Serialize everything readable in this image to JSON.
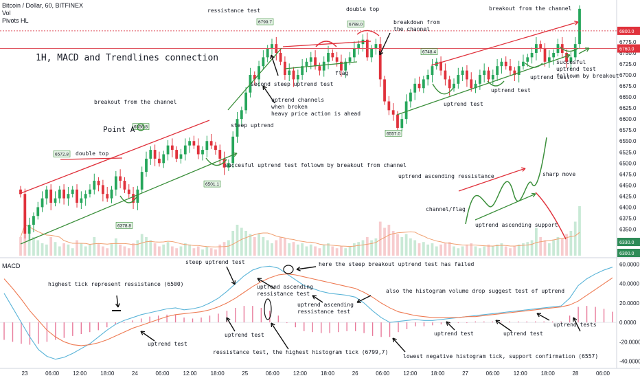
{
  "legend": {
    "symbol": "Bitcoin / Dollar, 60, BITFINEX",
    "volume": "Vol",
    "pivots": "Pivots HL",
    "macd": "MACD"
  },
  "title": "1H, MACD and Trendlines connection",
  "point_a": "Point A",
  "colors": {
    "up": "#26a65b",
    "down": "#e0323c",
    "uptrend_line": "#3b8f3b",
    "channel_line": "#e0323c",
    "macd_line": "#5ab4d8",
    "signal_line": "#ee7a52",
    "resistance_level": "#e05560",
    "support_level": "#2e8b57"
  },
  "price_levels": {
    "upper_dotted": {
      "value": 6800,
      "label": "6800.0"
    },
    "upper_solid": {
      "value": 6760,
      "label": "6760.0"
    },
    "volume_label": "6330.0",
    "bottom_label": "6300.0"
  },
  "pivot_tags": [
    {
      "label": "6572.8",
      "x": 90,
      "price": 6520
    },
    {
      "label": "6556.8",
      "x": 205,
      "price": 6582
    },
    {
      "label": "6799.7",
      "x": 386,
      "price": 6820
    },
    {
      "label": "6798.0",
      "x": 518,
      "price": 6815
    },
    {
      "label": "6748.4",
      "x": 625,
      "price": 6752
    },
    {
      "label": "6501.1",
      "x": 309,
      "price": 6452
    },
    {
      "label": "6378.8",
      "x": 181,
      "price": 6358
    },
    {
      "label": "6557.0",
      "x": 573,
      "price": 6567
    }
  ],
  "price_annotations": [
    {
      "text": "ressistance test",
      "x": 302,
      "y": 18
    },
    {
      "text": "double top",
      "x": 504,
      "y": 16
    },
    {
      "text": "breakout from the channel",
      "x": 712,
      "y": 15
    },
    {
      "text": "breakdown from",
      "x": 573,
      "y": 35
    },
    {
      "text": "the channel",
      "x": 573,
      "y": 45
    },
    {
      "text": "flag",
      "x": 488,
      "y": 109
    },
    {
      "text": "second steep uptrend test",
      "x": 365,
      "y": 125
    },
    {
      "text": "breakout from the channel",
      "x": 137,
      "y": 151
    },
    {
      "text": "uptrend channels",
      "x": 395,
      "y": 148
    },
    {
      "text": "when broken",
      "x": 395,
      "y": 158
    },
    {
      "text": "heavy price action is ahead",
      "x": 395,
      "y": 168
    },
    {
      "text": "steep uptrend",
      "x": 336,
      "y": 185
    },
    {
      "text": "double top",
      "x": 110,
      "y": 226
    },
    {
      "text": "succesful uptrend test followm by breakout from channel",
      "x": 327,
      "y": 243
    },
    {
      "text": "uptrend test",
      "x": 646,
      "y": 154
    },
    {
      "text": "uptrend test",
      "x": 715,
      "y": 134
    },
    {
      "text": "uptrend test",
      "x": 772,
      "y": 115
    },
    {
      "text": "succesful",
      "x": 810,
      "y": 93
    },
    {
      "text": "uptrend test",
      "x": 810,
      "y": 103
    },
    {
      "text": "followm by breakout",
      "x": 810,
      "y": 113
    },
    {
      "text": "uptrend ascending ressistance",
      "x": 580,
      "y": 259
    },
    {
      "text": "sharp move",
      "x": 790,
      "y": 256
    },
    {
      "text": "channel/flag",
      "x": 620,
      "y": 307
    },
    {
      "text": "uptrend ascending support",
      "x": 692,
      "y": 330
    }
  ],
  "macd_annotations": [
    {
      "text": "steep uptrend test",
      "x": 270,
      "y": 384
    },
    {
      "text": "here the steep breakout uptrend test has failed",
      "x": 464,
      "y": 387
    },
    {
      "text": "highest tick represent ressistance (6500)",
      "x": 70,
      "y": 416
    },
    {
      "text": "uptrend ascending",
      "x": 374,
      "y": 420
    },
    {
      "text": "ressistance test",
      "x": 374,
      "y": 430
    },
    {
      "text": "also the histogram volume drop suggest test of uptrend",
      "x": 562,
      "y": 426
    },
    {
      "text": "uptrend ascending",
      "x": 433,
      "y": 446
    },
    {
      "text": "ressistance test",
      "x": 433,
      "y": 456
    },
    {
      "text": "uptrend test",
      "x": 327,
      "y": 490
    },
    {
      "text": "uptrend test",
      "x": 215,
      "y": 503
    },
    {
      "text": "uptrend test",
      "x": 632,
      "y": 488
    },
    {
      "text": "uptrend test",
      "x": 733,
      "y": 488
    },
    {
      "text": "uptrend tests",
      "x": 806,
      "y": 475
    },
    {
      "text": "ressistance test, the highest histogram tick (6799,7)",
      "x": 310,
      "y": 515
    },
    {
      "text": "lowest negative histogram tick, support confirmation (6557)",
      "x": 587,
      "y": 521
    }
  ],
  "chart_data": [
    {
      "type": "candlestick",
      "title": "Bitcoin / Dollar, 60, BITFINEX",
      "interval": "60",
      "ylim": [
        6290,
        6870
      ],
      "y_ticks": [
        6300,
        6325,
        6350,
        6375,
        6400,
        6425,
        6450,
        6475,
        6500,
        6525,
        6550,
        6575,
        6600,
        6625,
        6650,
        6675,
        6700,
        6725,
        6750,
        6775
      ],
      "x_tick_labels": [
        "23",
        "06:00",
        "12:00",
        "18:00",
        "24",
        "06:00",
        "12:00",
        "18:00",
        "25",
        "06:00",
        "12:00",
        "18:00",
        "26",
        "06:00",
        "12:00",
        "18:00",
        "27",
        "06:00",
        "12:00",
        "18:00",
        "28",
        "06:00"
      ],
      "closes": [
        6430,
        6340,
        6360,
        6380,
        6400,
        6420,
        6440,
        6410,
        6420,
        6440,
        6420,
        6430,
        6440,
        6410,
        6420,
        6430,
        6440,
        6460,
        6450,
        6430,
        6420,
        6440,
        6470,
        6460,
        6440,
        6430,
        6410,
        6440,
        6480,
        6510,
        6530,
        6510,
        6500,
        6520,
        6540,
        6530,
        6510,
        6520,
        6540,
        6550,
        6540,
        6520,
        6530,
        6550,
        6540,
        6530,
        6510,
        6490,
        6500,
        6560,
        6600,
        6620,
        6660,
        6700,
        6690,
        6720,
        6740,
        6760,
        6770,
        6750,
        6730,
        6700,
        6710,
        6690,
        6700,
        6720,
        6730,
        6740,
        6720,
        6710,
        6730,
        6750,
        6740,
        6730,
        6710,
        6730,
        6740,
        6760,
        6770,
        6780,
        6740,
        6760,
        6770,
        6690,
        6640,
        6620,
        6610,
        6580,
        6600,
        6640,
        6660,
        6680,
        6670,
        6690,
        6700,
        6720,
        6730,
        6710,
        6690,
        6670,
        6680,
        6700,
        6710,
        6690,
        6670,
        6680,
        6700,
        6710,
        6690,
        6700,
        6720,
        6730,
        6720,
        6710,
        6700,
        6720,
        6730,
        6740,
        6750,
        6770,
        6760,
        6730,
        6740,
        6750,
        6770,
        6750,
        6730,
        6740,
        6770,
        6850
      ],
      "volume": [
        0.3,
        0.7,
        0.4,
        0.3,
        0.25,
        0.2,
        0.18,
        0.3,
        0.22,
        0.15,
        0.2,
        0.18,
        0.12,
        0.25,
        0.2,
        0.15,
        0.18,
        0.3,
        0.2,
        0.15,
        0.12,
        0.2,
        0.28,
        0.18,
        0.15,
        0.12,
        0.2,
        0.25,
        0.35,
        0.3,
        0.25,
        0.2,
        0.15,
        0.18,
        0.22,
        0.15,
        0.12,
        0.15,
        0.2,
        0.18,
        0.12,
        0.15,
        0.1,
        0.15,
        0.12,
        0.1,
        0.18,
        0.22,
        0.25,
        0.4,
        0.5,
        0.45,
        0.4,
        0.35,
        0.3,
        0.35,
        0.3,
        0.25,
        0.2,
        0.25,
        0.3,
        0.28,
        0.2,
        0.22,
        0.18,
        0.2,
        0.15,
        0.18,
        0.15,
        0.12,
        0.18,
        0.2,
        0.15,
        0.12,
        0.15,
        0.12,
        0.15,
        0.2,
        0.22,
        0.25,
        0.3,
        0.25,
        0.28,
        0.55,
        0.45,
        0.5,
        0.4,
        0.35,
        0.3,
        0.35,
        0.28,
        0.25,
        0.2,
        0.22,
        0.18,
        0.2,
        0.15,
        0.18,
        0.2,
        0.22,
        0.15,
        0.12,
        0.15,
        0.18,
        0.2,
        0.15,
        0.12,
        0.15,
        0.18,
        0.15,
        0.18,
        0.2,
        0.15,
        0.12,
        0.15,
        0.18,
        0.2,
        0.22,
        0.25,
        0.45,
        0.3,
        0.25,
        0.2,
        0.25,
        0.3,
        0.28,
        0.35,
        0.4,
        0.55,
        0.8
      ]
    },
    {
      "type": "line",
      "title": "MACD",
      "ylim": [
        -46,
        66
      ],
      "y_ticks": [
        60,
        40,
        20,
        0,
        -20,
        -40
      ],
      "y_tick_labels": [
        "60.0000",
        "40.0000",
        "20.0000",
        "0.0000",
        "-20.0000",
        "-40.0000"
      ],
      "series": [
        {
          "values": [
            30,
            15,
            0,
            -15,
            -28,
            -35,
            -38,
            -36,
            -32,
            -27,
            -22,
            -15,
            -8,
            -2,
            2,
            5,
            8,
            10,
            12,
            14,
            15,
            13,
            14,
            16,
            20,
            25,
            32,
            40,
            48,
            54,
            57,
            58,
            56,
            50,
            44,
            38,
            35,
            32,
            30,
            29,
            28,
            26,
            20,
            12,
            5,
            0,
            1,
            2,
            3,
            2,
            2,
            3,
            4,
            5,
            6,
            7,
            8,
            9,
            10,
            11,
            12,
            13,
            14,
            15,
            16,
            17,
            25,
            38,
            45,
            50,
            54,
            57
          ]
        },
        {
          "values": [
            45,
            35,
            24,
            12,
            2,
            -8,
            -15,
            -20,
            -23,
            -24,
            -23,
            -21,
            -18,
            -14,
            -10,
            -6,
            -3,
            0,
            3,
            6,
            8,
            9,
            10,
            11,
            13,
            16,
            20,
            25,
            31,
            37,
            42,
            46,
            49,
            50,
            49,
            47,
            45,
            43,
            41,
            39,
            37,
            35,
            31,
            26,
            20,
            15,
            11,
            9,
            7,
            6,
            5,
            5,
            5,
            5,
            6,
            6,
            7,
            8,
            9,
            10,
            11,
            12,
            13,
            14,
            15,
            16,
            18,
            22,
            28,
            34,
            40,
            46
          ]
        }
      ],
      "histogram": [
        -18,
        -20,
        -22,
        -23,
        -22,
        -20,
        -18,
        -16,
        -14,
        -12,
        -10,
        -8,
        -5,
        -2,
        0,
        2,
        4,
        6,
        7,
        8,
        8,
        5,
        4,
        5,
        7,
        9,
        12,
        15,
        17,
        17,
        15,
        12,
        7,
        0,
        -5,
        -9,
        -10,
        -11,
        -11,
        -10,
        -9,
        -9,
        -11,
        -14,
        -15,
        -15,
        -10,
        -7,
        -4,
        -4,
        -3,
        -2,
        -1,
        0,
        0,
        1,
        1,
        1,
        1,
        1,
        1,
        1,
        1,
        1,
        1,
        1,
        7,
        16,
        17,
        16,
        14,
        11
      ]
    }
  ]
}
